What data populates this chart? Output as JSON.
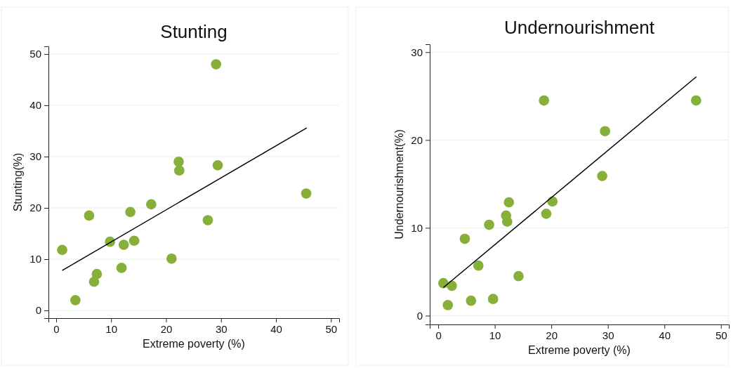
{
  "chart_data": [
    {
      "type": "scatter",
      "title": "Stunting",
      "xlabel": "Extreme poverty (%)",
      "ylabel": "Stunting(%)",
      "xlim": [
        -1.4,
        51.5
      ],
      "ylim": [
        -1.5,
        51.5
      ],
      "xticks": [
        0,
        10,
        20,
        30,
        40,
        50
      ],
      "yticks": [
        0,
        10,
        20,
        30,
        40,
        50
      ],
      "grid": "y",
      "series": [
        {
          "marker": "circle",
          "color": "#86b03a",
          "x": [
            1.1,
            3.5,
            6.0,
            6.9,
            7.4,
            9.8,
            11.9,
            12.3,
            13.5,
            14.2,
            17.3,
            21.0,
            22.3,
            22.4,
            27.6,
            29.1,
            29.4,
            45.5
          ],
          "values": [
            11.8,
            2.0,
            18.5,
            5.6,
            7.1,
            13.4,
            8.3,
            12.8,
            19.2,
            13.6,
            20.7,
            10.1,
            29.0,
            27.3,
            17.6,
            48.0,
            28.3,
            22.8
          ]
        },
        {
          "type": "line",
          "color": "#000000",
          "x": [
            1.1,
            45.6
          ],
          "values": [
            7.8,
            35.6
          ]
        }
      ]
    },
    {
      "type": "scatter",
      "title": "Undernourishment",
      "xlabel": "Extreme poverty (%)",
      "ylabel": "Undernourishment(%)",
      "xlim": [
        -1.5,
        51.4
      ],
      "ylim": [
        -1,
        30.9
      ],
      "xticks": [
        0,
        10,
        20,
        30,
        40,
        50
      ],
      "yticks": [
        0,
        10,
        20,
        30
      ],
      "grid": "y",
      "series": [
        {
          "marker": "circle",
          "color": "#86b03a",
          "x": [
            0.9,
            1.7,
            2.4,
            4.7,
            5.8,
            7.1,
            9.0,
            9.7,
            12.0,
            12.2,
            12.5,
            14.2,
            18.7,
            19.1,
            20.2,
            29.0,
            29.5,
            45.6
          ],
          "values": [
            3.7,
            1.2,
            3.4,
            8.75,
            1.7,
            5.7,
            10.35,
            1.9,
            11.4,
            10.7,
            12.9,
            4.5,
            24.5,
            11.6,
            13.0,
            15.9,
            21.0,
            24.5
          ]
        },
        {
          "type": "line",
          "color": "#000000",
          "x": [
            0.9,
            45.65
          ],
          "values": [
            3.2,
            27.2
          ]
        }
      ]
    }
  ]
}
